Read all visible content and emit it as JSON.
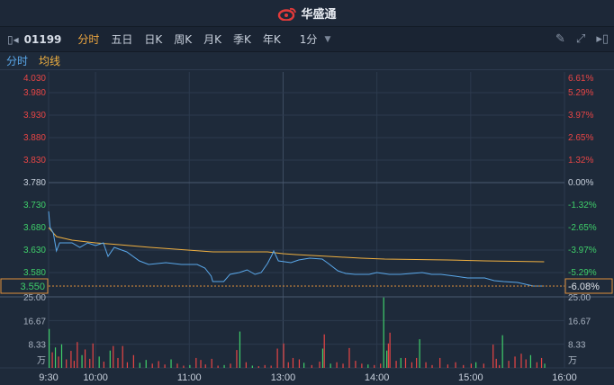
{
  "header": {
    "brand": "华盛通",
    "logo_icon": "weibo-style-logo"
  },
  "toolbar": {
    "code": "01199",
    "tabs": [
      "分时",
      "五日",
      "日K",
      "周K",
      "月K",
      "季K",
      "年K"
    ],
    "active_tab": 0,
    "period": "1分",
    "icons": [
      "collapse-left-icon",
      "pencil-icon",
      "fullscreen-icon",
      "expand-right-icon"
    ]
  },
  "legend": {
    "price_label": "分时",
    "avg_label": "均线"
  },
  "colors": {
    "up": "#e84545",
    "down": "#3fcf6a",
    "price_line": "#5aa8ea",
    "avg_line": "#f0b040",
    "highlight": "#e0903a"
  },
  "chart_data": {
    "type": "line",
    "prev_close": 3.78,
    "ylim": [
      3.55,
      4.03
    ],
    "left_ticks": [
      "4.030",
      "3.980",
      "3.930",
      "3.880",
      "3.830",
      "3.780",
      "3.730",
      "3.680",
      "3.630",
      "3.580"
    ],
    "right_ticks": [
      "6.61%",
      "5.29%",
      "3.97%",
      "2.65%",
      "1.32%",
      "0.00%",
      "-1.32%",
      "-2.65%",
      "-3.97%",
      "-5.29%"
    ],
    "current_price": "3.550",
    "current_change": "-6.08%",
    "x_ticks": [
      "9:30",
      "10:00",
      "11:00",
      "13:00",
      "14:00",
      "15:00",
      "16:00"
    ],
    "price": [
      [
        "09:30",
        3.716
      ],
      [
        "09:31",
        3.68
      ],
      [
        "09:33",
        3.668
      ],
      [
        "09:35",
        3.628
      ],
      [
        "09:37",
        3.646
      ],
      [
        "09:45",
        3.646
      ],
      [
        "09:50",
        3.636
      ],
      [
        "09:55",
        3.646
      ],
      [
        "10:00",
        3.64
      ],
      [
        "10:05",
        3.646
      ],
      [
        "10:08",
        3.616
      ],
      [
        "10:12",
        3.636
      ],
      [
        "10:20",
        3.626
      ],
      [
        "10:28",
        3.606
      ],
      [
        "10:34",
        3.598
      ],
      [
        "10:45",
        3.602
      ],
      [
        "10:55",
        3.598
      ],
      [
        "11:05",
        3.598
      ],
      [
        "11:10",
        3.59
      ],
      [
        "11:14",
        3.572
      ],
      [
        "11:15",
        3.56
      ],
      [
        "11:22",
        3.56
      ],
      [
        "11:26",
        3.576
      ],
      [
        "11:32",
        3.58
      ],
      [
        "11:37",
        3.586
      ],
      [
        "11:42",
        3.576
      ],
      [
        "11:46",
        3.58
      ],
      [
        "11:50",
        3.6
      ],
      [
        "11:53",
        3.62
      ],
      [
        "11:54",
        3.628
      ],
      [
        "11:57",
        3.606
      ],
      [
        "13:05",
        3.602
      ],
      [
        "13:10",
        3.608
      ],
      [
        "13:17",
        3.612
      ],
      [
        "13:25",
        3.61
      ],
      [
        "13:29",
        3.6
      ],
      [
        "13:35",
        3.584
      ],
      [
        "13:40",
        3.578
      ],
      [
        "13:46",
        3.576
      ],
      [
        "13:55",
        3.576
      ],
      [
        "14:00",
        3.58
      ],
      [
        "14:08",
        3.576
      ],
      [
        "14:15",
        3.576
      ],
      [
        "14:22",
        3.578
      ],
      [
        "14:29",
        3.58
      ],
      [
        "14:35",
        3.576
      ],
      [
        "14:41",
        3.576
      ],
      [
        "14:50",
        3.572
      ],
      [
        "14:58",
        3.568
      ],
      [
        "15:09",
        3.568
      ],
      [
        "15:15",
        3.562
      ],
      [
        "15:21",
        3.56
      ],
      [
        "15:30",
        3.558
      ],
      [
        "15:40",
        3.55
      ],
      [
        "15:47",
        3.55
      ]
    ],
    "average": [
      [
        "09:30",
        3.68
      ],
      [
        "09:35",
        3.66
      ],
      [
        "09:45",
        3.652
      ],
      [
        "10:00",
        3.646
      ],
      [
        "10:15",
        3.642
      ],
      [
        "10:35",
        3.636
      ],
      [
        "11:15",
        3.626
      ],
      [
        "11:50",
        3.626
      ],
      [
        "13:00",
        3.622
      ],
      [
        "13:08",
        3.62
      ],
      [
        "13:29",
        3.616
      ],
      [
        "13:50",
        3.612
      ],
      [
        "14:05",
        3.61
      ],
      [
        "14:45",
        3.608
      ],
      [
        "15:09",
        3.606
      ],
      [
        "15:47",
        3.604
      ]
    ],
    "volume_unit": "万",
    "volume_ticks": [
      "25.00",
      "16.67",
      "8.33"
    ],
    "volume_max": 25,
    "volume": [
      [
        "09:30",
        13.7,
        "d"
      ],
      [
        "09:32",
        5.5,
        "u"
      ],
      [
        "09:34",
        7.2,
        "d"
      ],
      [
        "09:36",
        4.0,
        "u"
      ],
      [
        "09:38",
        8.3,
        "d"
      ],
      [
        "09:41",
        3.0,
        "u"
      ],
      [
        "09:44",
        6.0,
        "u"
      ],
      [
        "09:46",
        2.5,
        "u"
      ],
      [
        "09:48",
        9.1,
        "u"
      ],
      [
        "09:51",
        4.5,
        "d"
      ],
      [
        "09:53",
        6.5,
        "u"
      ],
      [
        "09:56",
        3.2,
        "u"
      ],
      [
        "09:58",
        8.6,
        "u"
      ],
      [
        "10:02",
        4.0,
        "d"
      ],
      [
        "10:05",
        2.2,
        "u"
      ],
      [
        "10:09",
        6.1,
        "d"
      ],
      [
        "10:11",
        7.7,
        "u"
      ],
      [
        "10:14",
        3.5,
        "u"
      ],
      [
        "10:17",
        7.7,
        "u"
      ],
      [
        "10:20",
        2.0,
        "u"
      ],
      [
        "10:24",
        4.5,
        "u"
      ],
      [
        "10:28",
        1.8,
        "d"
      ],
      [
        "10:32",
        2.8,
        "d"
      ],
      [
        "10:36",
        1.5,
        "u"
      ],
      [
        "10:40",
        2.4,
        "u"
      ],
      [
        "10:44",
        1.2,
        "u"
      ],
      [
        "10:48",
        3.0,
        "d"
      ],
      [
        "10:52",
        1.5,
        "u"
      ],
      [
        "10:56",
        0.8,
        "u"
      ],
      [
        "11:00",
        1.0,
        "d"
      ],
      [
        "11:04",
        3.5,
        "u"
      ],
      [
        "11:07",
        2.8,
        "u"
      ],
      [
        "11:10",
        1.2,
        "u"
      ],
      [
        "11:14",
        3.2,
        "u"
      ],
      [
        "11:18",
        0.8,
        "u"
      ],
      [
        "11:22",
        1.0,
        "d"
      ],
      [
        "11:26",
        1.5,
        "u"
      ],
      [
        "11:30",
        6.3,
        "u"
      ],
      [
        "11:32",
        12.8,
        "d"
      ],
      [
        "11:36",
        2.0,
        "u"
      ],
      [
        "11:40",
        0.8,
        "d"
      ],
      [
        "11:44",
        0.6,
        "u"
      ],
      [
        "11:48",
        1.0,
        "u"
      ],
      [
        "11:52",
        0.8,
        "u"
      ],
      [
        "11:56",
        6.8,
        "u"
      ],
      [
        "13:00",
        8.6,
        "u"
      ],
      [
        "13:03",
        2.0,
        "u"
      ],
      [
        "13:06",
        3.5,
        "u"
      ],
      [
        "13:10",
        3.0,
        "u"
      ],
      [
        "13:13",
        1.8,
        "d"
      ],
      [
        "13:18",
        1.0,
        "u"
      ],
      [
        "13:23",
        2.2,
        "u"
      ],
      [
        "13:25",
        6.8,
        "d"
      ],
      [
        "13:26",
        11.8,
        "u"
      ],
      [
        "13:30",
        1.5,
        "d"
      ],
      [
        "13:34",
        2.0,
        "u"
      ],
      [
        "13:38",
        1.5,
        "u"
      ],
      [
        "13:42",
        7.0,
        "u"
      ],
      [
        "13:46",
        2.5,
        "u"
      ],
      [
        "13:50",
        1.5,
        "u"
      ],
      [
        "13:54",
        1.2,
        "d"
      ],
      [
        "13:58",
        1.0,
        "u"
      ],
      [
        "14:02",
        1.5,
        "u"
      ],
      [
        "14:04",
        24.8,
        "d"
      ],
      [
        "14:06",
        6.1,
        "d"
      ],
      [
        "14:07",
        8.6,
        "u"
      ],
      [
        "14:08",
        12.4,
        "u"
      ],
      [
        "14:12",
        2.5,
        "u"
      ],
      [
        "14:15",
        3.5,
        "d"
      ],
      [
        "14:18",
        3.5,
        "u"
      ],
      [
        "14:22",
        2.0,
        "u"
      ],
      [
        "14:25",
        3.5,
        "u"
      ],
      [
        "14:27",
        10.1,
        "d"
      ],
      [
        "14:31",
        2.0,
        "u"
      ],
      [
        "14:35",
        1.0,
        "u"
      ],
      [
        "14:40",
        3.5,
        "u"
      ],
      [
        "14:45",
        1.2,
        "u"
      ],
      [
        "14:50",
        2.0,
        "u"
      ],
      [
        "14:55",
        1.0,
        "u"
      ],
      [
        "15:00",
        1.5,
        "u"
      ],
      [
        "15:03",
        2.0,
        "d"
      ],
      [
        "15:08",
        1.5,
        "u"
      ],
      [
        "15:14",
        8.2,
        "u"
      ],
      [
        "15:16",
        3.2,
        "u"
      ],
      [
        "15:18",
        1.0,
        "u"
      ],
      [
        "15:20",
        11.5,
        "d"
      ],
      [
        "15:24",
        2.5,
        "u"
      ],
      [
        "15:28",
        4.0,
        "u"
      ],
      [
        "15:32",
        5.0,
        "u"
      ],
      [
        "15:35",
        3.0,
        "u"
      ],
      [
        "15:38",
        4.5,
        "d"
      ],
      [
        "15:42",
        2.0,
        "u"
      ],
      [
        "15:45",
        3.5,
        "u"
      ],
      [
        "15:47",
        1.5,
        "d"
      ]
    ]
  }
}
